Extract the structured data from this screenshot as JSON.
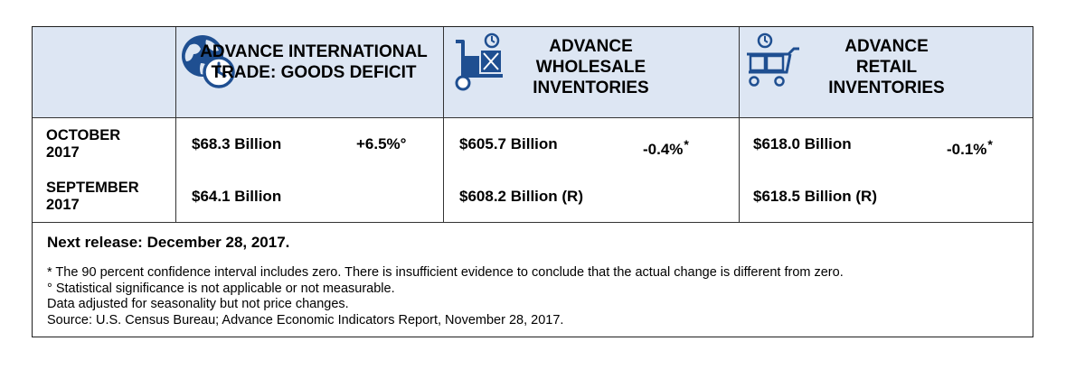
{
  "header": {
    "trade_title": "ADVANCE INTERNATIONAL TRADE: GOODS DEFICIT",
    "wholesale_title": "ADVANCE WHOLESALE INVENTORIES",
    "retail_title": "ADVANCE RETAIL INVENTORIES",
    "trade_icon": "globe-clock-icon",
    "wholesale_icon": "hand-truck-icon",
    "retail_icon": "shopping-cart-icon",
    "background_color": "#dde6f3",
    "icon_color": "#1f4f91"
  },
  "rows": [
    {
      "label": "OCTOBER 2017",
      "trade_value": "$68.3 Billion",
      "trade_change": "+6.5%°",
      "wholesale_value": "$605.7 Billion",
      "wholesale_change": "-0.4%",
      "wholesale_mark": "*",
      "retail_value": "$618.0 Billion",
      "retail_change": "-0.1%",
      "retail_mark": "*"
    },
    {
      "label": "SEPTEMBER 2017",
      "trade_value": "$64.1 Billion",
      "wholesale_value": "$608.2 Billion (R)",
      "retail_value": "$618.5 Billion (R)"
    }
  ],
  "next_release": "Next release: December 28, 2017.",
  "notes": [
    "* The 90 percent confidence interval includes zero. There is insufficient evidence to conclude that the actual change is different from zero.",
    "° Statistical significance is not applicable or not measurable.",
    "Data adjusted for seasonality but not price changes.",
    "Source: U.S. Census Bureau; Advance Economic Indicators Report, November 28, 2017."
  ]
}
